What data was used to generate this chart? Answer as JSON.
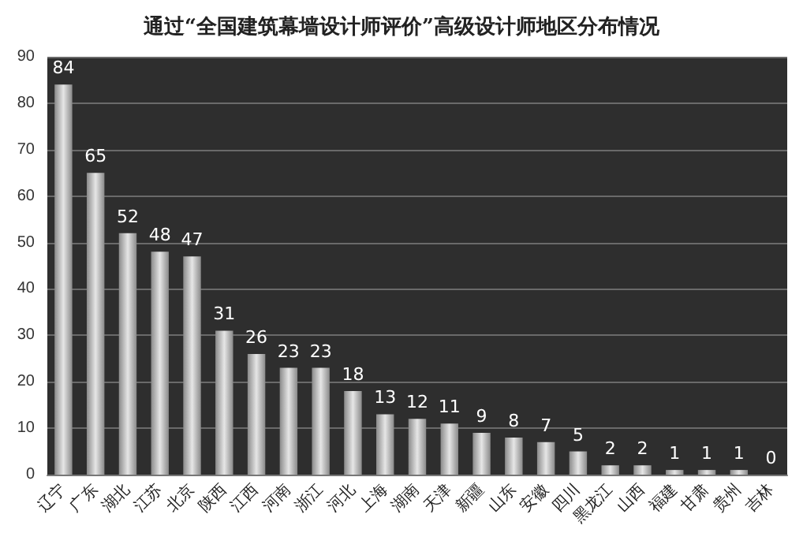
{
  "chart_data": {
    "type": "bar",
    "title": "通过“全国建筑幕墙设计师评价”高级设计师地区分布情况",
    "categories": [
      "辽宁",
      "广东",
      "湖北",
      "江苏",
      "北京",
      "陕西",
      "江西",
      "河南",
      "浙江",
      "河北",
      "上海",
      "湖南",
      "天津",
      "新疆",
      "山东",
      "安徽",
      "四川",
      "黑龙江",
      "山西",
      "福建",
      "甘肃",
      "贵州",
      "吉林"
    ],
    "values": [
      84,
      65,
      52,
      48,
      47,
      31,
      26,
      23,
      23,
      18,
      13,
      12,
      11,
      9,
      8,
      7,
      5,
      2,
      2,
      1,
      1,
      1,
      0
    ],
    "color": "#e6e6e6",
    "ylim": [
      0,
      90
    ],
    "yticks": [
      0,
      10,
      20,
      30,
      40,
      50,
      60,
      70,
      80,
      90
    ],
    "grid": "y",
    "data_labels": true
  }
}
